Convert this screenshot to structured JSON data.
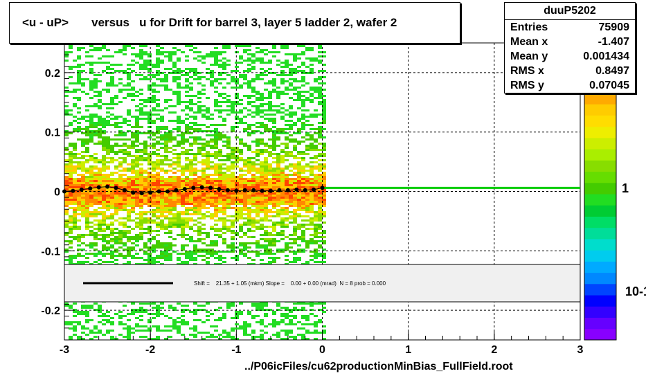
{
  "chart_data": {
    "type": "heatmap",
    "title": "<u - uP>       versus   u for Drift for barrel 3, layer 5 ladder 2, wafer 2",
    "xlabel": "",
    "ylabel": "",
    "xlim": [
      -3,
      3
    ],
    "ylim": [
      -0.25,
      0.25
    ],
    "x_ticks": [
      "-3",
      "-2",
      "-1",
      "0",
      "1",
      "2",
      "3"
    ],
    "y_ticks": [
      "-0.2",
      "-0.1",
      "0",
      "0.1",
      "0.2"
    ],
    "grid": true,
    "occupied_x_range": [
      -3,
      0
    ],
    "colorbar_labels": [
      "1",
      "10-1"
    ],
    "profile": {
      "x": [
        -3.0,
        -2.9,
        -2.8,
        -2.7,
        -2.6,
        -2.5,
        -2.4,
        -2.3,
        -2.2,
        -2.1,
        -2.0,
        -1.9,
        -1.8,
        -1.7,
        -1.6,
        -1.5,
        -1.4,
        -1.3,
        -1.2,
        -1.1,
        -1.0,
        -0.9,
        -0.8,
        -0.7,
        -0.6,
        -0.5,
        -0.4,
        -0.3,
        -0.2,
        -0.1,
        0.0
      ],
      "y": [
        0.0,
        0.001,
        0.003,
        0.005,
        0.007,
        0.008,
        0.006,
        0.002,
        -0.002,
        -0.003,
        -0.002,
        0.0,
        0.0,
        0.002,
        0.004,
        0.006,
        0.007,
        0.006,
        0.004,
        0.002,
        0.001,
        0.002,
        0.002,
        0.001,
        0.001,
        0.002,
        0.002,
        0.003,
        0.002,
        0.003,
        0.006
      ]
    },
    "fit_line": {
      "x": [
        0,
        3
      ],
      "y": [
        0.006,
        0.006
      ],
      "color": "#00cc00"
    },
    "fit_text": "Shift =    21.35 + 1.05 (mkm) Slope =    0.00 + 0.00 (mrad)  N = 8 prob = 0.000"
  },
  "stats": {
    "name": "duuP5202",
    "rows": [
      {
        "key": "Entries",
        "value": "75909"
      },
      {
        "key": "Mean x",
        "value": "-1.407"
      },
      {
        "key": "Mean y",
        "value": "0.001434"
      },
      {
        "key": "RMS x",
        "value": "0.8497"
      },
      {
        "key": "RMS y",
        "value": "0.07045"
      }
    ]
  },
  "footer": "../P06icFiles/cu62productionMinBias_FullField.root"
}
